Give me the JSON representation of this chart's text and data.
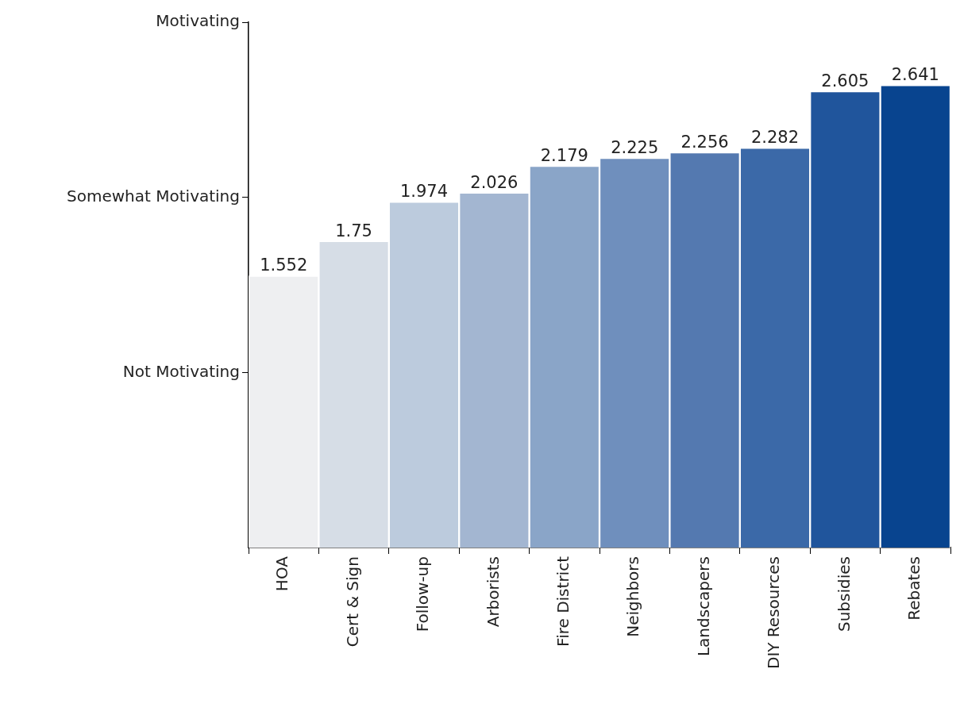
{
  "chart_data": {
    "type": "bar",
    "categories": [
      "HOA",
      "Cert & Sign",
      "Follow-up",
      "Arborists",
      "Fire District",
      "Neighbors",
      "Landscapers",
      "DIY Resources",
      "Subsidies",
      "Rebates"
    ],
    "values": [
      1.552,
      1.75,
      1.974,
      2.026,
      2.179,
      2.225,
      2.256,
      2.282,
      2.605,
      2.641
    ],
    "colors": [
      "#eeeff1",
      "#d6dde6",
      "#bccbdd",
      "#a3b6d1",
      "#8aa5c8",
      "#6f8fbd",
      "#5479b0",
      "#3b69a8",
      "#20559c",
      "#08448f"
    ],
    "ylim": [
      0,
      3
    ],
    "annotations": [
      "Not Motivating",
      "Somewhat Motivating",
      "Motivating"
    ],
    "data_labels": true,
    "grid": false,
    "legend": false
  }
}
